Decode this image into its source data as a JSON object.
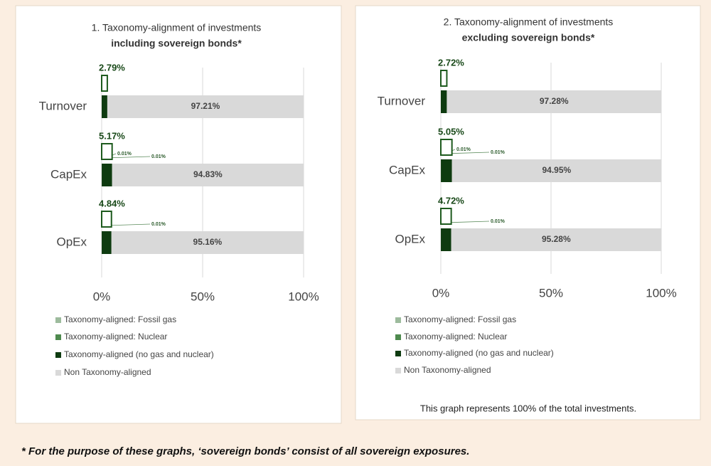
{
  "chart_data": [
    {
      "type": "stacked_barh",
      "title": "1. Taxonomy-alignment of investments",
      "subtitle": "including sovereign bonds*",
      "categories": [
        "Turnover",
        "CapEx",
        "OpEx"
      ],
      "series": [
        {
          "name": "Taxonomy-aligned: Fossil gas",
          "color": "#9dbb9d",
          "values": [
            0,
            0.01,
            0
          ],
          "value_labels": [
            null,
            "0.01%",
            null
          ]
        },
        {
          "name": "Taxonomy-aligned: Nuclear",
          "color": "#4e8a4e",
          "values": [
            0,
            0.01,
            0.01
          ],
          "value_labels": [
            null,
            "0.01%",
            "0.01%"
          ]
        },
        {
          "name": "Taxonomy-aligned (no gas and nuclear)",
          "color": "#0e3b10",
          "values": [
            2.79,
            5.15,
            4.83
          ]
        },
        {
          "name": "Non Taxonomy-aligned",
          "color": "#d9d9d9",
          "values": [
            97.21,
            94.83,
            95.16
          ],
          "value_labels": [
            "97.21%",
            "94.83%",
            "95.16%"
          ]
        }
      ],
      "totals": {
        "values": [
          2.79,
          5.17,
          4.84
        ],
        "value_labels": [
          "2.79%",
          "5.17%",
          "4.84%"
        ]
      },
      "xlim": [
        0,
        100
      ],
      "xticks": [
        {
          "value": 0,
          "label": "0%"
        },
        {
          "value": 50,
          "label": "50%"
        },
        {
          "value": 100,
          "label": "100%"
        }
      ],
      "grid": true
    },
    {
      "type": "stacked_barh",
      "title": "2. Taxonomy-alignment of investments",
      "subtitle": "excluding sovereign bonds*",
      "categories": [
        "Turnover",
        "CapEx",
        "OpEx"
      ],
      "series": [
        {
          "name": "Taxonomy-aligned: Fossil gas",
          "color": "#9dbb9d",
          "values": [
            0,
            0.01,
            0
          ],
          "value_labels": [
            null,
            "0.01%",
            null
          ]
        },
        {
          "name": "Taxonomy-aligned: Nuclear",
          "color": "#4e8a4e",
          "values": [
            0,
            0.01,
            0.01
          ],
          "value_labels": [
            null,
            "0.01%",
            "0.01%"
          ]
        },
        {
          "name": "Taxonomy-aligned (no gas and nuclear)",
          "color": "#0e3b10",
          "values": [
            2.72,
            5.03,
            4.71
          ]
        },
        {
          "name": "Non Taxonomy-aligned",
          "color": "#d9d9d9",
          "values": [
            97.28,
            94.95,
            95.28
          ],
          "value_labels": [
            "97.28%",
            "94.95%",
            "95.28%"
          ]
        }
      ],
      "totals": {
        "values": [
          2.72,
          5.05,
          4.72
        ],
        "value_labels": [
          "2.72%",
          "5.05%",
          "4.72%"
        ]
      },
      "xlim": [
        0,
        100
      ],
      "xticks": [
        {
          "value": 0,
          "label": "0%"
        },
        {
          "value": 50,
          "label": "50%"
        },
        {
          "value": 100,
          "label": "100%"
        }
      ],
      "grid": true,
      "note": "This graph represents 100% of the total investments."
    }
  ],
  "footnote": "*   For the purpose of these graphs, ‘sovereign bonds’ consist of all sovereign exposures."
}
